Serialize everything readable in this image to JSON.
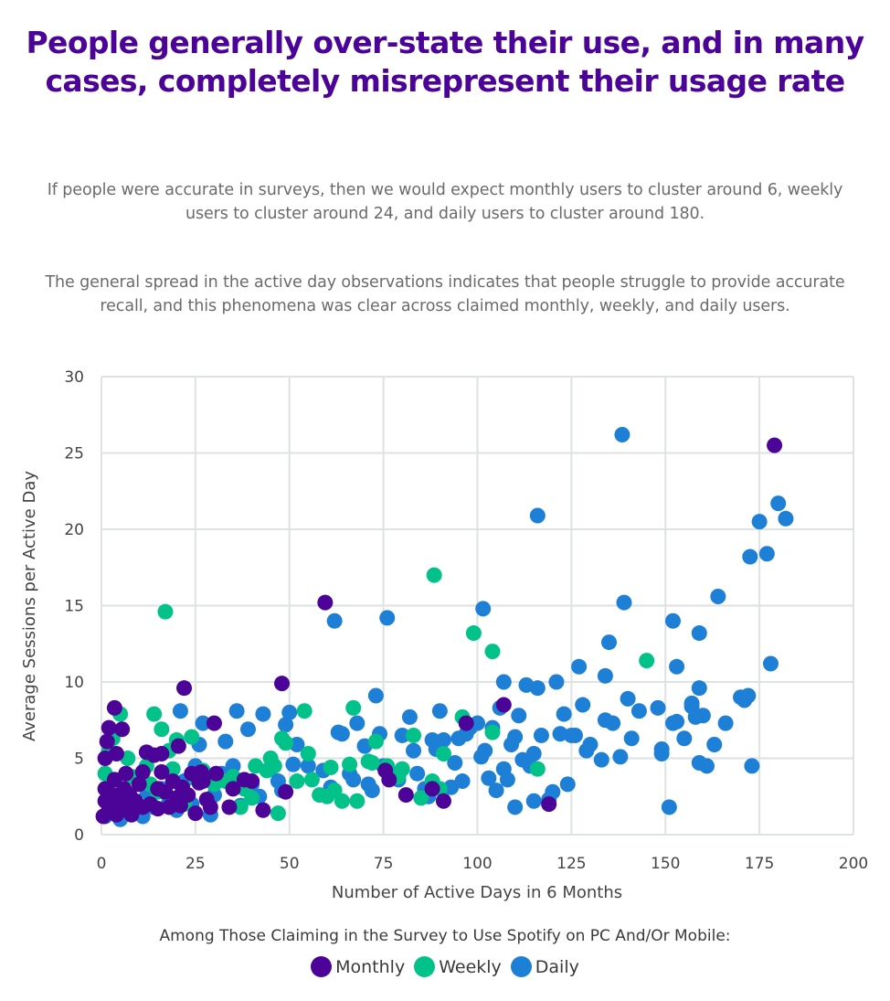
{
  "title": "People generally over-state their use, and in many cases, completely misrepresent their usage rate",
  "paragraphs": [
    "If people were accurate in surveys, then we would expect monthly users to cluster around 6, weekly users to cluster around 24, and daily users to cluster around 180.",
    "The general spread in the active day observations indicates that people struggle to provide accurate recall, and this phenomena was clear across claimed monthly, weekly, and daily users."
  ],
  "colors": {
    "title": "#4b0398",
    "monthly": "#4b0398",
    "weekly": "#02c28a",
    "daily": "#1e7fd6",
    "grid": "#dde2e2"
  },
  "legend": {
    "title": "Among Those Claiming in the Survey to Use Spotify on PC And/Or Mobile:",
    "items": [
      {
        "label": "Monthly",
        "series": "monthly"
      },
      {
        "label": "Weekly",
        "series": "weekly"
      },
      {
        "label": "Daily",
        "series": "daily"
      }
    ]
  },
  "chart_data": {
    "type": "scatter",
    "title": "",
    "xlabel": "Number of Active Days in 6 Months",
    "ylabel": "Average Sessions per Active Day",
    "xlim": [
      0,
      200
    ],
    "ylim": [
      0,
      30
    ],
    "xticks": [
      0,
      25,
      50,
      75,
      100,
      125,
      150,
      175,
      200
    ],
    "yticks": [
      0,
      5,
      10,
      15,
      20,
      25,
      30
    ],
    "grid": true,
    "legend_position": "bottom",
    "series": [
      {
        "name": "Daily",
        "key": "daily",
        "points": [
          [
            1,
            1.2
          ],
          [
            3,
            1.5
          ],
          [
            5,
            1.0
          ],
          [
            7,
            1.4
          ],
          [
            9,
            2.0
          ],
          [
            11,
            1.2
          ],
          [
            12,
            2.5
          ],
          [
            14,
            1.8
          ],
          [
            16,
            3.0
          ],
          [
            18,
            2.2
          ],
          [
            20,
            1.6
          ],
          [
            21,
            8.1
          ],
          [
            22,
            3.5
          ],
          [
            24,
            2.0
          ],
          [
            25,
            4.5
          ],
          [
            26,
            5.9
          ],
          [
            27,
            7.3
          ],
          [
            28,
            3.8
          ],
          [
            29,
            1.3
          ],
          [
            30,
            2.6
          ],
          [
            32,
            4.0
          ],
          [
            33,
            6.1
          ],
          [
            35,
            4.5
          ],
          [
            36,
            8.1
          ],
          [
            37,
            1.9
          ],
          [
            39,
            6.9
          ],
          [
            40,
            3.3
          ],
          [
            42,
            2.5
          ],
          [
            43,
            7.9
          ],
          [
            45,
            4.3
          ],
          [
            47,
            3.5
          ],
          [
            48,
            2.9
          ],
          [
            49,
            7.2
          ],
          [
            50,
            8.0
          ],
          [
            51,
            4.6
          ],
          [
            52,
            5.9
          ],
          [
            55,
            4.5
          ],
          [
            59,
            4.2
          ],
          [
            61,
            3.1
          ],
          [
            62,
            14.0
          ],
          [
            63,
            6.7
          ],
          [
            64,
            6.6
          ],
          [
            66,
            4.0
          ],
          [
            67,
            3.6
          ],
          [
            68,
            7.3
          ],
          [
            70,
            5.8
          ],
          [
            71,
            3.3
          ],
          [
            72,
            2.9
          ],
          [
            73,
            9.1
          ],
          [
            74,
            6.6
          ],
          [
            75,
            4.5
          ],
          [
            76,
            14.2
          ],
          [
            77,
            4.0
          ],
          [
            79,
            3.6
          ],
          [
            80,
            6.5
          ],
          [
            82,
            7.7
          ],
          [
            83,
            5.5
          ],
          [
            84,
            4.0
          ],
          [
            86,
            3.0
          ],
          [
            87,
            2.5
          ],
          [
            88,
            6.2
          ],
          [
            89,
            5.6
          ],
          [
            90,
            8.1
          ],
          [
            91,
            6.2
          ],
          [
            93,
            3.1
          ],
          [
            94,
            4.7
          ],
          [
            95,
            6.3
          ],
          [
            96,
            3.5
          ],
          [
            97,
            6.6
          ],
          [
            98,
            7.0
          ],
          [
            100,
            7.3
          ],
          [
            101,
            5.1
          ],
          [
            101.5,
            14.8
          ],
          [
            102,
            5.5
          ],
          [
            103,
            3.7
          ],
          [
            104,
            7.0
          ],
          [
            105,
            2.9
          ],
          [
            106,
            8.3
          ],
          [
            107,
            4.3
          ],
          [
            107,
            10.0
          ],
          [
            108,
            3.6
          ],
          [
            109,
            5.9
          ],
          [
            110,
            6.4
          ],
          [
            110,
            1.8
          ],
          [
            111,
            7.8
          ],
          [
            112,
            4.9
          ],
          [
            113,
            9.8
          ],
          [
            114,
            4.5
          ],
          [
            115,
            5.3
          ],
          [
            115,
            2.2
          ],
          [
            116,
            20.9
          ],
          [
            116,
            9.6
          ],
          [
            117,
            6.5
          ],
          [
            119,
            2.3
          ],
          [
            120,
            2.8
          ],
          [
            121,
            10.0
          ],
          [
            122,
            6.6
          ],
          [
            123,
            7.9
          ],
          [
            124,
            3.3
          ],
          [
            125,
            6.5
          ],
          [
            126,
            6.5
          ],
          [
            127,
            11.0
          ],
          [
            128,
            8.5
          ],
          [
            129,
            5.5
          ],
          [
            130,
            5.9
          ],
          [
            133,
            4.9
          ],
          [
            134,
            7.5
          ],
          [
            134,
            10.4
          ],
          [
            135,
            12.6
          ],
          [
            136,
            7.3
          ],
          [
            138,
            5.1
          ],
          [
            138.5,
            26.2
          ],
          [
            139,
            15.2
          ],
          [
            140,
            8.9
          ],
          [
            141,
            6.3
          ],
          [
            143,
            8.1
          ],
          [
            148,
            8.3
          ],
          [
            149,
            5.6
          ],
          [
            149,
            5.3
          ],
          [
            151,
            1.8
          ],
          [
            152,
            7.3
          ],
          [
            152,
            14.0
          ],
          [
            153,
            11.0
          ],
          [
            153,
            7.4
          ],
          [
            155,
            6.3
          ],
          [
            157,
            8.4
          ],
          [
            157,
            8.6
          ],
          [
            158,
            7.7
          ],
          [
            159,
            9.6
          ],
          [
            159,
            13.2
          ],
          [
            159,
            4.7
          ],
          [
            160,
            7.8
          ],
          [
            161,
            4.5
          ],
          [
            163,
            5.9
          ],
          [
            164,
            15.6
          ],
          [
            166,
            7.3
          ],
          [
            170,
            9.0
          ],
          [
            171,
            8.8
          ],
          [
            172,
            9.1
          ],
          [
            172.5,
            18.2
          ],
          [
            173,
            4.5
          ],
          [
            175,
            20.5
          ],
          [
            177,
            18.4
          ],
          [
            178,
            11.2
          ],
          [
            180,
            21.7
          ],
          [
            182,
            20.7
          ]
        ]
      },
      {
        "name": "Weekly",
        "key": "weekly",
        "points": [
          [
            1,
            4.0
          ],
          [
            2,
            5.5
          ],
          [
            3,
            6.3
          ],
          [
            4,
            2.5
          ],
          [
            5,
            7.9
          ],
          [
            7,
            5.0
          ],
          [
            8,
            3.8
          ],
          [
            10,
            2.0
          ],
          [
            12,
            4.5
          ],
          [
            13,
            3.3
          ],
          [
            14,
            7.9
          ],
          [
            15,
            2.8
          ],
          [
            16,
            6.9
          ],
          [
            17,
            14.6
          ],
          [
            18,
            5.5
          ],
          [
            19,
            4.3
          ],
          [
            20,
            6.2
          ],
          [
            22,
            2.0
          ],
          [
            24,
            6.4
          ],
          [
            25,
            3.7
          ],
          [
            27,
            4.2
          ],
          [
            30,
            3.3
          ],
          [
            33,
            3.5
          ],
          [
            35,
            3.8
          ],
          [
            37,
            1.8
          ],
          [
            38,
            3.0
          ],
          [
            40,
            2.4
          ],
          [
            41,
            4.5
          ],
          [
            44,
            4.2
          ],
          [
            45,
            5.0
          ],
          [
            46,
            4.5
          ],
          [
            47,
            1.4
          ],
          [
            48,
            6.3
          ],
          [
            49,
            6.0
          ],
          [
            52,
            3.5
          ],
          [
            54,
            8.1
          ],
          [
            55,
            5.3
          ],
          [
            56,
            3.6
          ],
          [
            58,
            2.6
          ],
          [
            60,
            2.5
          ],
          [
            61,
            4.4
          ],
          [
            62,
            2.9
          ],
          [
            64,
            2.2
          ],
          [
            66,
            4.6
          ],
          [
            67,
            8.3
          ],
          [
            68,
            2.2
          ],
          [
            71,
            4.8
          ],
          [
            72,
            4.7
          ],
          [
            73,
            6.1
          ],
          [
            76,
            4.5
          ],
          [
            79,
            3.8
          ],
          [
            80,
            4.3
          ],
          [
            83,
            6.5
          ],
          [
            85,
            2.4
          ],
          [
            88,
            3.5
          ],
          [
            88.5,
            17.0
          ],
          [
            90,
            3.0
          ],
          [
            91,
            5.3
          ],
          [
            96,
            7.7
          ],
          [
            99,
            13.2
          ],
          [
            104,
            12.0
          ],
          [
            104,
            6.7
          ],
          [
            116,
            4.3
          ],
          [
            145,
            11.4
          ]
        ]
      },
      {
        "name": "Monthly",
        "key": "monthly",
        "points": [
          [
            0.5,
            1.2
          ],
          [
            1,
            2.2
          ],
          [
            1,
            3.0
          ],
          [
            1,
            5.0
          ],
          [
            1.5,
            6.1
          ],
          [
            2,
            1.6
          ],
          [
            2,
            7.0
          ],
          [
            3,
            2.6
          ],
          [
            3.5,
            3.6
          ],
          [
            3.5,
            8.3
          ],
          [
            4,
            1.3
          ],
          [
            4,
            5.3
          ],
          [
            5,
            2.1
          ],
          [
            5.5,
            6.9
          ],
          [
            6,
            3.0
          ],
          [
            6.5,
            4.0
          ],
          [
            7,
            1.6
          ],
          [
            7.5,
            2.6
          ],
          [
            8,
            1.3
          ],
          [
            9,
            2.2
          ],
          [
            10,
            3.3
          ],
          [
            11,
            4.1
          ],
          [
            11,
            1.8
          ],
          [
            12,
            5.4
          ],
          [
            13,
            2.0
          ],
          [
            14,
            5.2
          ],
          [
            15,
            3.0
          ],
          [
            15,
            1.7
          ],
          [
            16,
            4.1
          ],
          [
            16,
            5.3
          ],
          [
            17,
            2.8
          ],
          [
            18,
            1.8
          ],
          [
            19,
            3.5
          ],
          [
            20,
            2.4
          ],
          [
            20.5,
            5.8
          ],
          [
            21,
            1.9
          ],
          [
            21.5,
            3.1
          ],
          [
            22,
            9.6
          ],
          [
            23,
            2.6
          ],
          [
            24,
            4.0
          ],
          [
            25,
            1.4
          ],
          [
            26,
            3.4
          ],
          [
            26.5,
            4.1
          ],
          [
            27,
            3.5
          ],
          [
            28,
            2.3
          ],
          [
            29,
            1.8
          ],
          [
            30,
            7.3
          ],
          [
            30.5,
            4.0
          ],
          [
            34,
            1.8
          ],
          [
            35,
            3.0
          ],
          [
            38,
            3.6
          ],
          [
            40,
            3.5
          ],
          [
            43,
            1.6
          ],
          [
            48,
            9.9
          ],
          [
            49,
            2.8
          ],
          [
            59.5,
            15.2
          ],
          [
            75.5,
            4.2
          ],
          [
            76.5,
            3.6
          ],
          [
            81,
            2.6
          ],
          [
            88,
            3.0
          ],
          [
            91,
            2.2
          ],
          [
            97,
            7.3
          ],
          [
            107,
            8.5
          ],
          [
            119,
            2.0
          ],
          [
            179,
            25.5
          ]
        ]
      }
    ]
  }
}
